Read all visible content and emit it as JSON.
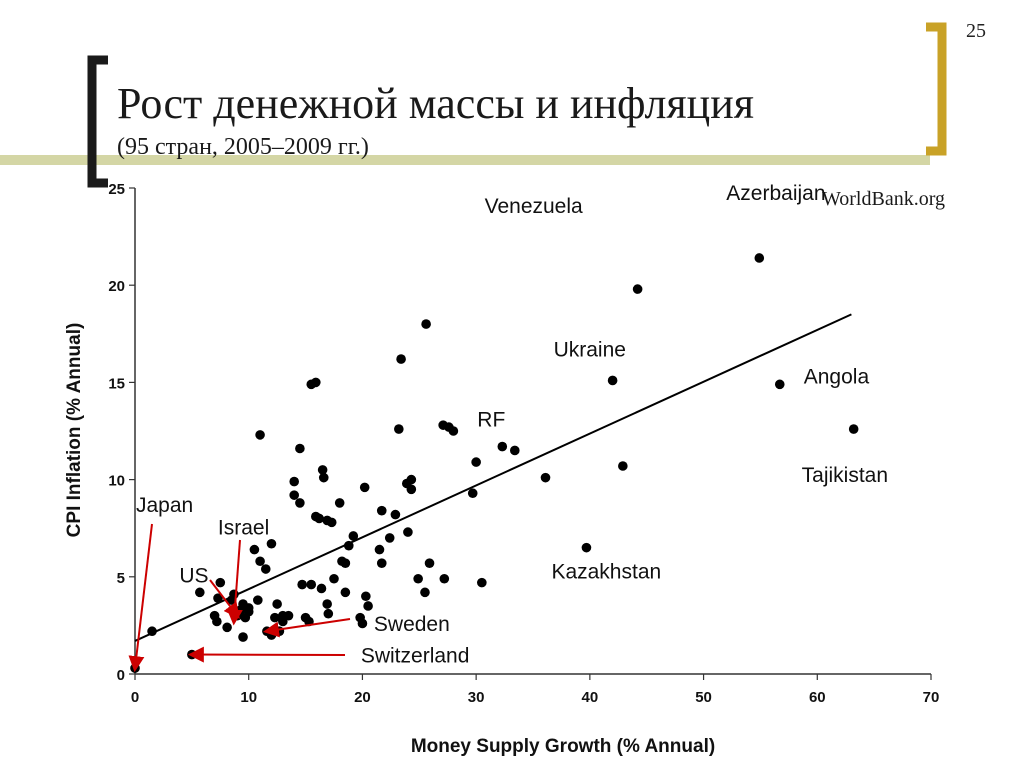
{
  "slide": {
    "number": "25",
    "title": "Рост денежной массы и инфляция",
    "subtitle": "(95 стран, 2005–2009 гг.)",
    "source": "WorldBank.org"
  },
  "colors": {
    "bracket_dark": "#1a1a1a",
    "bracket_gold": "#c9a227",
    "header_band": "#d4d6a5",
    "points": "#000000",
    "arrows": "#cc0000"
  },
  "chart_data": {
    "type": "scatter",
    "xlabel": "Money Supply Growth (% Annual)",
    "ylabel": "CPI Inflation (% Annual)",
    "xlim": [
      0,
      70
    ],
    "ylim": [
      0,
      25
    ],
    "xticks": [
      0,
      10,
      20,
      30,
      40,
      50,
      60,
      70
    ],
    "yticks": [
      0,
      5,
      10,
      15,
      20,
      25
    ],
    "grid": false,
    "trendline": {
      "x": [
        0,
        63
      ],
      "y": [
        1.7,
        18.5
      ]
    },
    "series": [
      {
        "points": [
          [
            0,
            0.3
          ],
          [
            1.5,
            2.2
          ],
          [
            5,
            1.0
          ],
          [
            5.7,
            4.2
          ],
          [
            7.0,
            3.0
          ],
          [
            7.2,
            2.7
          ],
          [
            7.3,
            3.9
          ],
          [
            7.5,
            4.7
          ],
          [
            8.1,
            2.4
          ],
          [
            8.5,
            3.8
          ],
          [
            8.7,
            4.1
          ],
          [
            9.0,
            3.0
          ],
          [
            9.3,
            3.3
          ],
          [
            9.5,
            3.6
          ],
          [
            9.7,
            2.9
          ],
          [
            9.5,
            1.9
          ],
          [
            10.0,
            3.2
          ],
          [
            10.0,
            3.4
          ],
          [
            10.5,
            6.4
          ],
          [
            10.8,
            3.8
          ],
          [
            11.0,
            5.8
          ],
          [
            11.0,
            12.3
          ],
          [
            11.5,
            5.4
          ],
          [
            11.6,
            2.2
          ],
          [
            12.0,
            6.7
          ],
          [
            12.0,
            2.0
          ],
          [
            12.3,
            2.9
          ],
          [
            12.5,
            3.6
          ],
          [
            12.7,
            2.2
          ],
          [
            13.0,
            3.0
          ],
          [
            13.0,
            2.7
          ],
          [
            13.5,
            3.0
          ],
          [
            14.0,
            9.9
          ],
          [
            14.0,
            9.2
          ],
          [
            14.5,
            11.6
          ],
          [
            14.7,
            4.6
          ],
          [
            14.5,
            8.8
          ],
          [
            15.0,
            2.9
          ],
          [
            15.3,
            2.7
          ],
          [
            15.5,
            14.9
          ],
          [
            15.5,
            4.6
          ],
          [
            15.9,
            15.0
          ],
          [
            15.9,
            8.1
          ],
          [
            16.2,
            8.0
          ],
          [
            16.4,
            4.4
          ],
          [
            16.5,
            10.5
          ],
          [
            16.6,
            10.1
          ],
          [
            16.9,
            7.9
          ],
          [
            16.9,
            3.6
          ],
          [
            17.0,
            3.1
          ],
          [
            17.3,
            7.8
          ],
          [
            17.5,
            4.9
          ],
          [
            18.0,
            8.8
          ],
          [
            18.2,
            5.8
          ],
          [
            18.5,
            5.7
          ],
          [
            18.5,
            4.2
          ],
          [
            18.8,
            6.6
          ],
          [
            19.2,
            7.1
          ],
          [
            19.8,
            2.9
          ],
          [
            20.0,
            2.6
          ],
          [
            20.2,
            9.6
          ],
          [
            20.3,
            4.0
          ],
          [
            20.5,
            3.5
          ],
          [
            21.5,
            6.4
          ],
          [
            21.7,
            8.4
          ],
          [
            22.4,
            7.0
          ],
          [
            22.9,
            8.2
          ],
          [
            23.2,
            12.6
          ],
          [
            23.4,
            16.2
          ],
          [
            23.9,
            9.8
          ],
          [
            24.0,
            7.3
          ],
          [
            24.3,
            10.0
          ],
          [
            24.3,
            9.5
          ],
          [
            24.9,
            4.9
          ],
          [
            25.5,
            4.2
          ],
          [
            25.6,
            18.0
          ],
          [
            25.9,
            5.7
          ],
          [
            27.1,
            12.8
          ],
          [
            27.6,
            12.7
          ],
          [
            28.0,
            12.5
          ],
          [
            29.7,
            9.3
          ],
          [
            30.0,
            10.9
          ],
          [
            30.5,
            4.7
          ],
          [
            32.3,
            11.7
          ],
          [
            33.4,
            11.5
          ],
          [
            36.1,
            10.1
          ],
          [
            39.7,
            6.5
          ],
          [
            42.0,
            15.1
          ],
          [
            42.9,
            10.7
          ],
          [
            44.2,
            19.8
          ],
          [
            54.9,
            21.4
          ],
          [
            56.7,
            14.9
          ],
          [
            63.2,
            12.6
          ],
          [
            27.2,
            4.9
          ],
          [
            21.7,
            5.7
          ]
        ]
      }
    ],
    "annotations": [
      {
        "label": "Venezuela",
        "x": 44.2,
        "y": 19.8
      },
      {
        "label": "Azerbaijan",
        "x": 54.9,
        "y": 21.4
      },
      {
        "label": "Ukraine",
        "x": 42.0,
        "y": 15.1
      },
      {
        "label": "Angola",
        "x": 56.7,
        "y": 14.9
      },
      {
        "label": "RF",
        "x": 32.3,
        "y": 11.7
      },
      {
        "label": "Tajikistan",
        "x": 63.2,
        "y": 12.6
      },
      {
        "label": "Kazakhstan",
        "x": 39.7,
        "y": 6.5
      },
      {
        "label": "Japan",
        "x": 0,
        "y": 0.3
      },
      {
        "label": "Israel",
        "x": 8.7,
        "y": 2.7
      },
      {
        "label": "US",
        "x": 9.0,
        "y": 3.0
      },
      {
        "label": "Sweden",
        "x": 11.6,
        "y": 2.2
      },
      {
        "label": "Switzerland",
        "x": 5,
        "y": 1.0
      }
    ]
  }
}
